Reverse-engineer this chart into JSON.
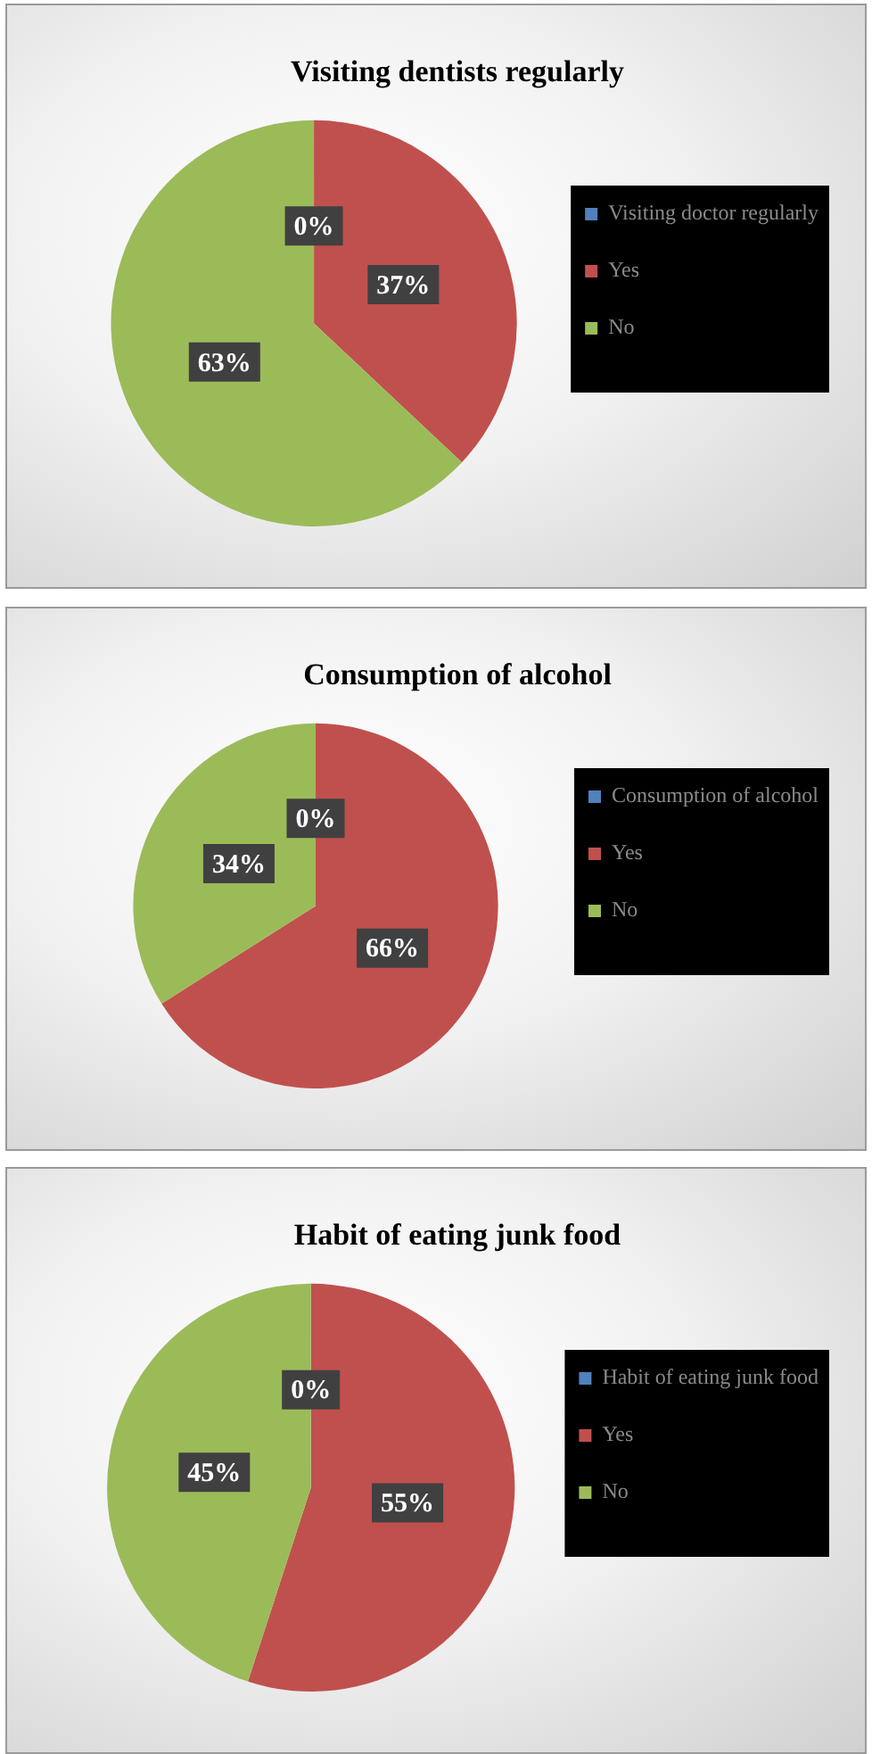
{
  "chart_data": [
    {
      "type": "pie",
      "title": "Visiting dentists regularly",
      "categories": [
        "Visiting doctor regularly",
        "Yes",
        "No"
      ],
      "values": [
        0,
        37,
        63
      ],
      "colors": [
        "#4f81bd",
        "#c0504d",
        "#9bbb59"
      ],
      "value_labels": [
        "0%",
        "37%",
        "63%"
      ],
      "legend": "right"
    },
    {
      "type": "pie",
      "title": "Consumption of alcohol",
      "categories": [
        "Consumption of alcohol",
        "Yes",
        "No"
      ],
      "values": [
        0,
        66,
        34
      ],
      "colors": [
        "#4f81bd",
        "#c0504d",
        "#9bbb59"
      ],
      "value_labels": [
        "0%",
        "66%",
        "34%"
      ],
      "legend": "right"
    },
    {
      "type": "pie",
      "title": "Habit of eating junk food",
      "categories": [
        "Habit of eating junk food",
        "Yes",
        "No"
      ],
      "values": [
        0,
        55,
        45
      ],
      "colors": [
        "#4f81bd",
        "#c0504d",
        "#9bbb59"
      ],
      "value_labels": [
        "0%",
        "55%",
        "45%"
      ],
      "legend": "right"
    }
  ]
}
